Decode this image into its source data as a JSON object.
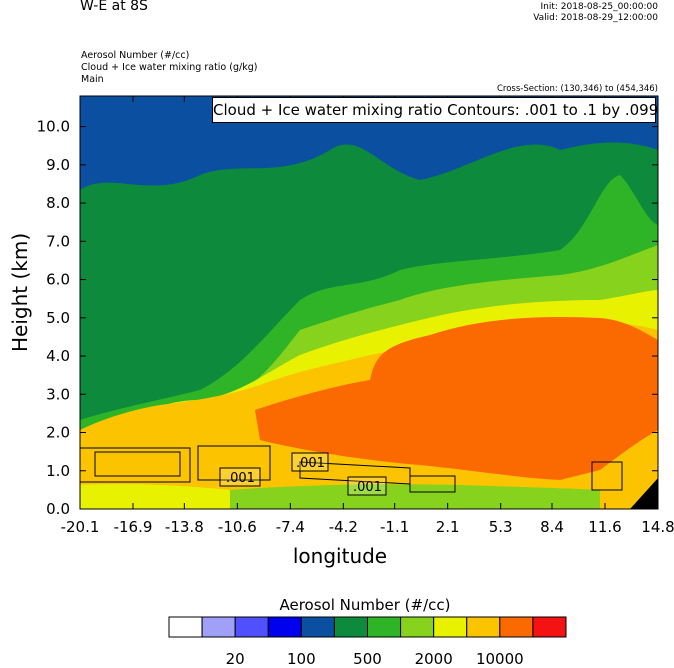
{
  "header": {
    "title": "W-E at 8S",
    "init": "Init: 2018-08-25_00:00:00",
    "valid": "Valid: 2018-08-29_12:00:00",
    "field1": "Aerosol Number   (#/cc)",
    "field2": "Cloud + Ice water mixing ratio   (g/kg)",
    "field3": "Main",
    "cross_section": "Cross-Section: (130,346) to (454,346)",
    "contour_info": "Cloud + Ice water mixing ratio Contours: .001 to .1 by .099"
  },
  "chart_data": {
    "type": "heatmap",
    "title": "W-E at 8S",
    "xlabel": "longitude",
    "ylabel": "Height (km)",
    "xlim": [
      -20.1,
      14.8
    ],
    "ylim": [
      0.0,
      10.8
    ],
    "x_ticks": [
      "-20.1",
      "-16.9",
      "-13.8",
      "-10.6",
      "-7.4",
      "-4.2",
      "-1.1",
      "2.1",
      "5.3",
      "8.4",
      "11.6",
      "14.8"
    ],
    "y_ticks": [
      "0.0",
      "1.0",
      "2.0",
      "3.0",
      "4.0",
      "5.0",
      "6.0",
      "7.0",
      "8.0",
      "9.0",
      "10.0"
    ],
    "colorbar": {
      "title": "Aerosol Number  (#/cc)",
      "colors": [
        "#ffffff",
        "#a0a0f8",
        "#5050ff",
        "#0000ee",
        "#0a4fa0",
        "#0d8a3c",
        "#30b427",
        "#87d21c",
        "#e8f200",
        "#fcc400",
        "#fb6a00",
        "#f51212"
      ],
      "labels": [
        "20",
        "100",
        "500",
        "2000",
        "10000"
      ]
    },
    "contour_labels": [
      ".001",
      ".001",
      ".001"
    ]
  }
}
